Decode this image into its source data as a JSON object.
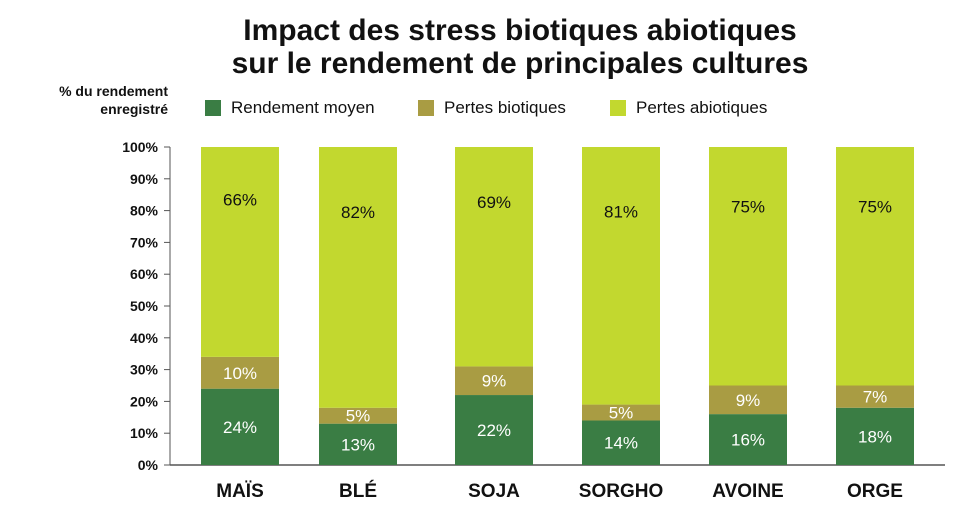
{
  "chart_data": {
    "type": "bar",
    "stacked": true,
    "title": "Impact des stress biotiques abiotiques",
    "subtitle": "sur le rendement de principales cultures",
    "ylabel_line1": "% du rendement",
    "ylabel_line2": "enregistré",
    "xlabel": "",
    "ylim": [
      0,
      100
    ],
    "yticks": [
      0,
      10,
      20,
      30,
      40,
      50,
      60,
      70,
      80,
      90,
      100
    ],
    "ytick_labels": [
      "0%",
      "10%",
      "20%",
      "30%",
      "40%",
      "50%",
      "60%",
      "70%",
      "80%",
      "90%",
      "100%"
    ],
    "categories": [
      "MAÏS",
      "BLÉ",
      "SOJA",
      "SORGHO",
      "AVOINE",
      "ORGE"
    ],
    "series": [
      {
        "name": "Rendement moyen",
        "color": "#3a7d44",
        "label_color": "#ffffff",
        "values": [
          24,
          13,
          22,
          14,
          16,
          18
        ],
        "labels": [
          "24%",
          "13%",
          "22%",
          "14%",
          "16%",
          "18%"
        ]
      },
      {
        "name": "Pertes biotiques",
        "color": "#a99c43",
        "label_color": "#ffffff",
        "values": [
          10,
          5,
          9,
          5,
          9,
          7
        ],
        "labels": [
          "10%",
          "5%",
          "9%",
          "5%",
          "9%",
          "7%"
        ]
      },
      {
        "name": "Pertes abiotiques",
        "color": "#c2d82f",
        "label_color": "#111111",
        "values": [
          66,
          82,
          69,
          81,
          75,
          75
        ],
        "labels": [
          "66%",
          "82%",
          "69%",
          "81%",
          "75%",
          "75%"
        ]
      }
    ],
    "legend_position": "top",
    "grid": false
  }
}
